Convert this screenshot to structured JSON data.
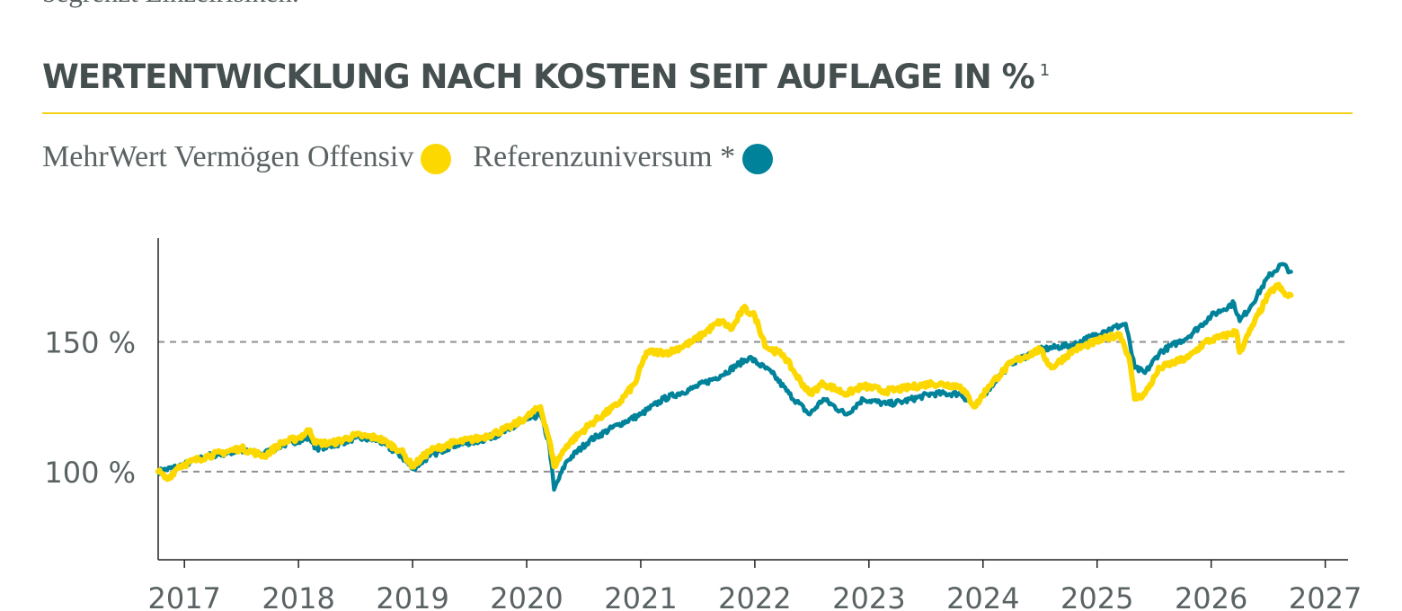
{
  "intro": {
    "text": "begrenzt Einzelrisiken."
  },
  "section": {
    "title": "WERTENTWICKLUNG NACH KOSTEN SEIT AUFLAGE IN %",
    "footnote_mark": "1"
  },
  "legend": {
    "items": [
      {
        "label": "MehrWert Vermögen Offensiv",
        "color": "#fcd800"
      },
      {
        "label": "Referenzuniversum *",
        "color": "#00839a"
      }
    ]
  },
  "chart_data": {
    "type": "line",
    "x_ticks": [
      "2017",
      "2018",
      "2019",
      "2020",
      "2021",
      "2022",
      "2023",
      "2024",
      "2025",
      "2026",
      "2027"
    ],
    "xlim": [
      2016.77,
      2027.2
    ],
    "y_ticks": [
      {
        "value": 100,
        "label": "100 %"
      },
      {
        "value": 150,
        "label": "150 %"
      }
    ],
    "ylim": [
      66,
      190
    ],
    "gridlines": [
      100,
      150
    ],
    "series": [
      {
        "name": "Referenzuniversum *",
        "color": "#00839a",
        "points": [
          [
            2016.77,
            100
          ],
          [
            2016.95,
            102
          ],
          [
            2017.2,
            106
          ],
          [
            2017.5,
            108
          ],
          [
            2017.7,
            107
          ],
          [
            2017.85,
            110
          ],
          [
            2018.0,
            112
          ],
          [
            2018.1,
            113
          ],
          [
            2018.15,
            109
          ],
          [
            2018.3,
            110
          ],
          [
            2018.5,
            113
          ],
          [
            2018.7,
            112
          ],
          [
            2018.9,
            106
          ],
          [
            2019.0,
            101
          ],
          [
            2019.15,
            106
          ],
          [
            2019.35,
            110
          ],
          [
            2019.6,
            112
          ],
          [
            2019.85,
            116
          ],
          [
            2020.0,
            120
          ],
          [
            2020.12,
            122
          ],
          [
            2020.2,
            110
          ],
          [
            2020.24,
            93
          ],
          [
            2020.35,
            104
          ],
          [
            2020.55,
            112
          ],
          [
            2020.8,
            118
          ],
          [
            2021.0,
            122
          ],
          [
            2021.2,
            128
          ],
          [
            2021.45,
            132
          ],
          [
            2021.7,
            137
          ],
          [
            2021.95,
            144
          ],
          [
            2022.15,
            138
          ],
          [
            2022.3,
            130
          ],
          [
            2022.48,
            122
          ],
          [
            2022.6,
            128
          ],
          [
            2022.8,
            122
          ],
          [
            2022.95,
            128
          ],
          [
            2023.15,
            126
          ],
          [
            2023.3,
            127
          ],
          [
            2023.55,
            130
          ],
          [
            2023.8,
            130
          ],
          [
            2023.93,
            125
          ],
          [
            2024.05,
            132
          ],
          [
            2024.25,
            142
          ],
          [
            2024.5,
            147
          ],
          [
            2024.8,
            149
          ],
          [
            2025.05,
            154
          ],
          [
            2025.25,
            157
          ],
          [
            2025.33,
            140
          ],
          [
            2025.42,
            138
          ],
          [
            2025.55,
            146
          ],
          [
            2025.8,
            152
          ],
          [
            2026.0,
            160
          ],
          [
            2026.2,
            165
          ],
          [
            2026.25,
            158
          ],
          [
            2026.35,
            164
          ],
          [
            2026.5,
            175
          ],
          [
            2026.62,
            180
          ],
          [
            2026.7,
            177
          ]
        ]
      },
      {
        "name": "MehrWert Vermögen Offensiv",
        "color": "#fcd800",
        "points": [
          [
            2016.77,
            100
          ],
          [
            2016.85,
            97
          ],
          [
            2016.95,
            102
          ],
          [
            2017.2,
            106
          ],
          [
            2017.5,
            109
          ],
          [
            2017.7,
            106
          ],
          [
            2017.85,
            111
          ],
          [
            2018.0,
            113
          ],
          [
            2018.1,
            116
          ],
          [
            2018.15,
            111
          ],
          [
            2018.3,
            111
          ],
          [
            2018.5,
            114
          ],
          [
            2018.7,
            113
          ],
          [
            2018.9,
            108
          ],
          [
            2019.0,
            102
          ],
          [
            2019.15,
            108
          ],
          [
            2019.35,
            111
          ],
          [
            2019.6,
            113
          ],
          [
            2019.85,
            117
          ],
          [
            2020.0,
            121
          ],
          [
            2020.12,
            125
          ],
          [
            2020.2,
            112
          ],
          [
            2020.24,
            102
          ],
          [
            2020.35,
            110
          ],
          [
            2020.55,
            118
          ],
          [
            2020.8,
            126
          ],
          [
            2020.95,
            134
          ],
          [
            2021.05,
            146
          ],
          [
            2021.25,
            146
          ],
          [
            2021.45,
            150
          ],
          [
            2021.7,
            158
          ],
          [
            2021.8,
            155
          ],
          [
            2021.9,
            163
          ],
          [
            2022.0,
            160
          ],
          [
            2022.1,
            148
          ],
          [
            2022.25,
            145
          ],
          [
            2022.35,
            138
          ],
          [
            2022.48,
            130
          ],
          [
            2022.6,
            134
          ],
          [
            2022.8,
            130
          ],
          [
            2022.95,
            133
          ],
          [
            2023.15,
            131
          ],
          [
            2023.3,
            132
          ],
          [
            2023.55,
            134
          ],
          [
            2023.8,
            133
          ],
          [
            2023.93,
            125
          ],
          [
            2024.05,
            133
          ],
          [
            2024.25,
            142
          ],
          [
            2024.5,
            147
          ],
          [
            2024.6,
            140
          ],
          [
            2024.8,
            147
          ],
          [
            2025.05,
            151
          ],
          [
            2025.2,
            153
          ],
          [
            2025.28,
            144
          ],
          [
            2025.33,
            128
          ],
          [
            2025.42,
            130
          ],
          [
            2025.55,
            140
          ],
          [
            2025.8,
            144
          ],
          [
            2025.95,
            150
          ],
          [
            2026.1,
            152
          ],
          [
            2026.22,
            154
          ],
          [
            2026.25,
            146
          ],
          [
            2026.35,
            155
          ],
          [
            2026.5,
            168
          ],
          [
            2026.58,
            172
          ],
          [
            2026.65,
            168
          ],
          [
            2026.7,
            168
          ]
        ]
      }
    ]
  }
}
